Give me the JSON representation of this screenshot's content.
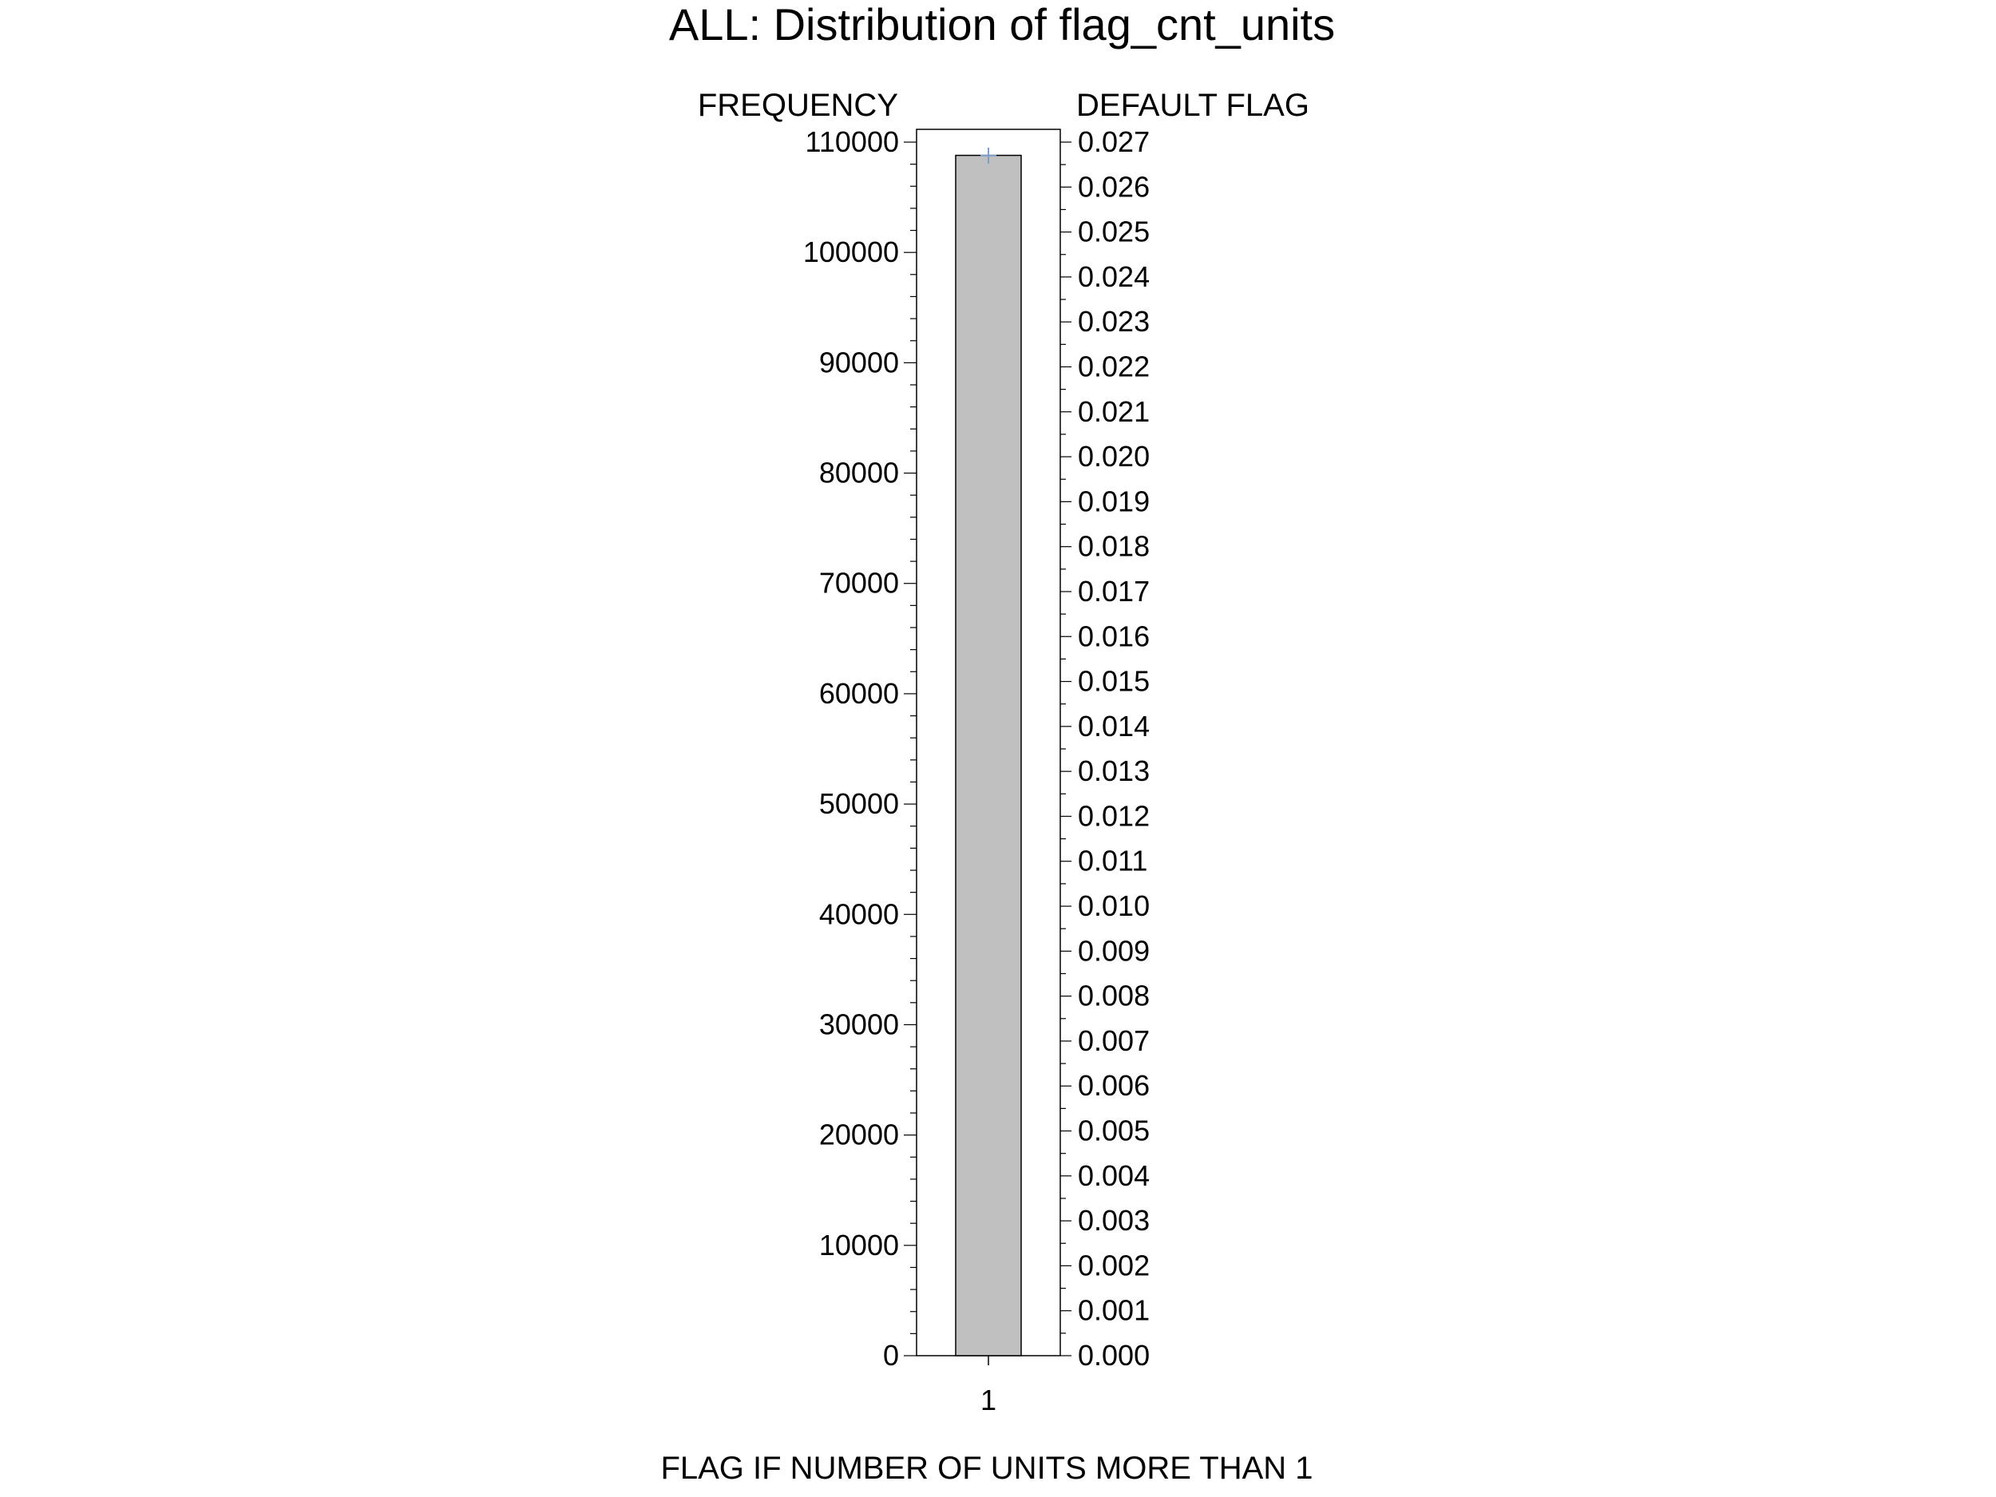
{
  "chart_data": {
    "type": "bar",
    "title": "ALL: Distribution of flag_cnt_units",
    "xlabel": "FLAG IF NUMBER OF UNITS MORE THAN 1",
    "ylabel": "FREQUENCY",
    "y2label": "DEFAULT FLAG",
    "categories": [
      "1"
    ],
    "series": [
      {
        "name": "",
        "axis": "left",
        "type": "bar",
        "values": [
          108800
        ]
      },
      {
        "name": "",
        "axis": "right",
        "type": "line",
        "values": [
          0.0267
        ]
      }
    ],
    "ylim": [
      0,
      111000
    ],
    "y2lim": [
      0,
      0.027
    ],
    "yticks": [
      0,
      10000,
      20000,
      30000,
      40000,
      50000,
      60000,
      70000,
      80000,
      90000,
      100000,
      110000
    ],
    "y2ticks": [
      0.0,
      0.001,
      0.002,
      0.003,
      0.004,
      0.005,
      0.006,
      0.007,
      0.008,
      0.009,
      0.01,
      0.011,
      0.012,
      0.013,
      0.014,
      0.015,
      0.016,
      0.017,
      0.018,
      0.019,
      0.02,
      0.021,
      0.022,
      0.023,
      0.024,
      0.025,
      0.026,
      0.027
    ],
    "y2tick_labels": [
      "0.000",
      "0.001",
      "0.002",
      "0.003",
      "0.004",
      "0.005",
      "0.006",
      "0.007",
      "0.008",
      "0.009",
      "0.010",
      "0.011",
      "0.012",
      "0.013",
      "0.014",
      "0.015",
      "0.016",
      "0.017",
      "0.018",
      "0.019",
      "0.020",
      "0.021",
      "0.022",
      "0.023",
      "0.024",
      "0.025",
      "0.026",
      "0.027"
    ],
    "grid": false,
    "legend": "none",
    "colors": {
      "bar_fill": "#c0c0c0",
      "bar_stroke": "#000000",
      "line": "#7f9fc8",
      "axis": "#000000",
      "frame": "#000000"
    }
  }
}
